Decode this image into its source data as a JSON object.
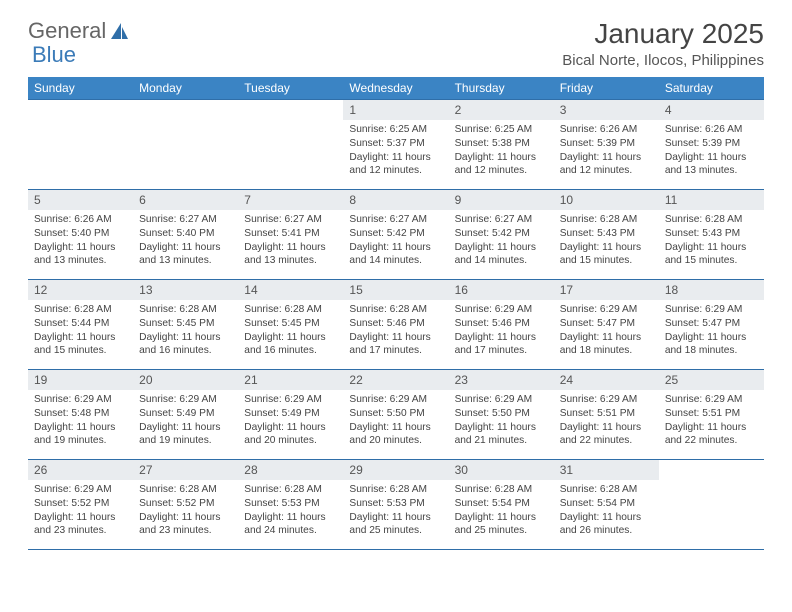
{
  "logo": {
    "text1": "General",
    "text2": "Blue"
  },
  "title": "January 2025",
  "location": "Bical Norte, Ilocos, Philippines",
  "columns": [
    "Sunday",
    "Monday",
    "Tuesday",
    "Wednesday",
    "Thursday",
    "Friday",
    "Saturday"
  ],
  "header_bg": "#3b84c4",
  "header_fg": "#ffffff",
  "daynum_bg": "#e9ecef",
  "border_color": "#2f6ea8",
  "weeks": [
    [
      {
        "n": "",
        "lines": [
          "",
          "",
          "",
          ""
        ],
        "empty": true
      },
      {
        "n": "",
        "lines": [
          "",
          "",
          "",
          ""
        ],
        "empty": true
      },
      {
        "n": "",
        "lines": [
          "",
          "",
          "",
          ""
        ],
        "empty": true
      },
      {
        "n": "1",
        "lines": [
          "Sunrise: 6:25 AM",
          "Sunset: 5:37 PM",
          "Daylight: 11 hours",
          "and 12 minutes."
        ]
      },
      {
        "n": "2",
        "lines": [
          "Sunrise: 6:25 AM",
          "Sunset: 5:38 PM",
          "Daylight: 11 hours",
          "and 12 minutes."
        ]
      },
      {
        "n": "3",
        "lines": [
          "Sunrise: 6:26 AM",
          "Sunset: 5:39 PM",
          "Daylight: 11 hours",
          "and 12 minutes."
        ]
      },
      {
        "n": "4",
        "lines": [
          "Sunrise: 6:26 AM",
          "Sunset: 5:39 PM",
          "Daylight: 11 hours",
          "and 13 minutes."
        ]
      }
    ],
    [
      {
        "n": "5",
        "lines": [
          "Sunrise: 6:26 AM",
          "Sunset: 5:40 PM",
          "Daylight: 11 hours",
          "and 13 minutes."
        ]
      },
      {
        "n": "6",
        "lines": [
          "Sunrise: 6:27 AM",
          "Sunset: 5:40 PM",
          "Daylight: 11 hours",
          "and 13 minutes."
        ]
      },
      {
        "n": "7",
        "lines": [
          "Sunrise: 6:27 AM",
          "Sunset: 5:41 PM",
          "Daylight: 11 hours",
          "and 13 minutes."
        ]
      },
      {
        "n": "8",
        "lines": [
          "Sunrise: 6:27 AM",
          "Sunset: 5:42 PM",
          "Daylight: 11 hours",
          "and 14 minutes."
        ]
      },
      {
        "n": "9",
        "lines": [
          "Sunrise: 6:27 AM",
          "Sunset: 5:42 PM",
          "Daylight: 11 hours",
          "and 14 minutes."
        ]
      },
      {
        "n": "10",
        "lines": [
          "Sunrise: 6:28 AM",
          "Sunset: 5:43 PM",
          "Daylight: 11 hours",
          "and 15 minutes."
        ]
      },
      {
        "n": "11",
        "lines": [
          "Sunrise: 6:28 AM",
          "Sunset: 5:43 PM",
          "Daylight: 11 hours",
          "and 15 minutes."
        ]
      }
    ],
    [
      {
        "n": "12",
        "lines": [
          "Sunrise: 6:28 AM",
          "Sunset: 5:44 PM",
          "Daylight: 11 hours",
          "and 15 minutes."
        ]
      },
      {
        "n": "13",
        "lines": [
          "Sunrise: 6:28 AM",
          "Sunset: 5:45 PM",
          "Daylight: 11 hours",
          "and 16 minutes."
        ]
      },
      {
        "n": "14",
        "lines": [
          "Sunrise: 6:28 AM",
          "Sunset: 5:45 PM",
          "Daylight: 11 hours",
          "and 16 minutes."
        ]
      },
      {
        "n": "15",
        "lines": [
          "Sunrise: 6:28 AM",
          "Sunset: 5:46 PM",
          "Daylight: 11 hours",
          "and 17 minutes."
        ]
      },
      {
        "n": "16",
        "lines": [
          "Sunrise: 6:29 AM",
          "Sunset: 5:46 PM",
          "Daylight: 11 hours",
          "and 17 minutes."
        ]
      },
      {
        "n": "17",
        "lines": [
          "Sunrise: 6:29 AM",
          "Sunset: 5:47 PM",
          "Daylight: 11 hours",
          "and 18 minutes."
        ]
      },
      {
        "n": "18",
        "lines": [
          "Sunrise: 6:29 AM",
          "Sunset: 5:47 PM",
          "Daylight: 11 hours",
          "and 18 minutes."
        ]
      }
    ],
    [
      {
        "n": "19",
        "lines": [
          "Sunrise: 6:29 AM",
          "Sunset: 5:48 PM",
          "Daylight: 11 hours",
          "and 19 minutes."
        ]
      },
      {
        "n": "20",
        "lines": [
          "Sunrise: 6:29 AM",
          "Sunset: 5:49 PM",
          "Daylight: 11 hours",
          "and 19 minutes."
        ]
      },
      {
        "n": "21",
        "lines": [
          "Sunrise: 6:29 AM",
          "Sunset: 5:49 PM",
          "Daylight: 11 hours",
          "and 20 minutes."
        ]
      },
      {
        "n": "22",
        "lines": [
          "Sunrise: 6:29 AM",
          "Sunset: 5:50 PM",
          "Daylight: 11 hours",
          "and 20 minutes."
        ]
      },
      {
        "n": "23",
        "lines": [
          "Sunrise: 6:29 AM",
          "Sunset: 5:50 PM",
          "Daylight: 11 hours",
          "and 21 minutes."
        ]
      },
      {
        "n": "24",
        "lines": [
          "Sunrise: 6:29 AM",
          "Sunset: 5:51 PM",
          "Daylight: 11 hours",
          "and 22 minutes."
        ]
      },
      {
        "n": "25",
        "lines": [
          "Sunrise: 6:29 AM",
          "Sunset: 5:51 PM",
          "Daylight: 11 hours",
          "and 22 minutes."
        ]
      }
    ],
    [
      {
        "n": "26",
        "lines": [
          "Sunrise: 6:29 AM",
          "Sunset: 5:52 PM",
          "Daylight: 11 hours",
          "and 23 minutes."
        ]
      },
      {
        "n": "27",
        "lines": [
          "Sunrise: 6:28 AM",
          "Sunset: 5:52 PM",
          "Daylight: 11 hours",
          "and 23 minutes."
        ]
      },
      {
        "n": "28",
        "lines": [
          "Sunrise: 6:28 AM",
          "Sunset: 5:53 PM",
          "Daylight: 11 hours",
          "and 24 minutes."
        ]
      },
      {
        "n": "29",
        "lines": [
          "Sunrise: 6:28 AM",
          "Sunset: 5:53 PM",
          "Daylight: 11 hours",
          "and 25 minutes."
        ]
      },
      {
        "n": "30",
        "lines": [
          "Sunrise: 6:28 AM",
          "Sunset: 5:54 PM",
          "Daylight: 11 hours",
          "and 25 minutes."
        ]
      },
      {
        "n": "31",
        "lines": [
          "Sunrise: 6:28 AM",
          "Sunset: 5:54 PM",
          "Daylight: 11 hours",
          "and 26 minutes."
        ]
      },
      {
        "n": "",
        "lines": [
          "",
          "",
          "",
          ""
        ],
        "empty": true
      }
    ]
  ]
}
